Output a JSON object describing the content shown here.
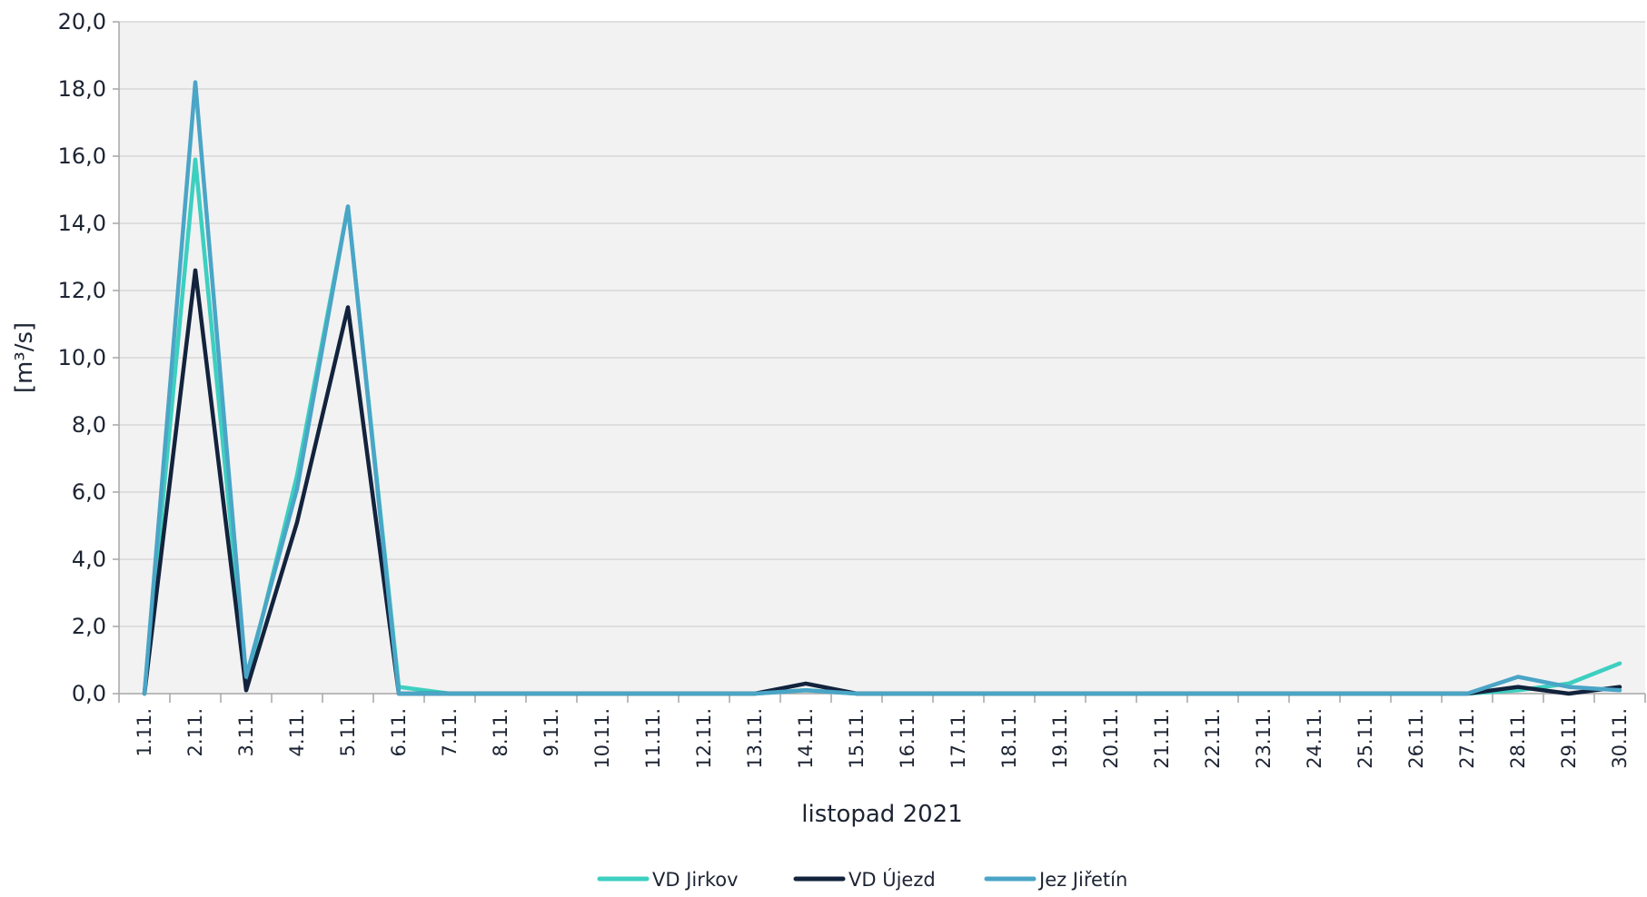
{
  "chart_data": {
    "type": "line",
    "title": "",
    "xlabel": "listopad 2021",
    "ylabel": "[m³/s]",
    "categories": [
      "1.11.",
      "2.11.",
      "3.11.",
      "4.11.",
      "5.11.",
      "6.11.",
      "7.11.",
      "8.11.",
      "9.11.",
      "10.11.",
      "11.11.",
      "12.11.",
      "13.11.",
      "14.11.",
      "15.11.",
      "16.11.",
      "17.11.",
      "18.11.",
      "19.11.",
      "20.11.",
      "21.11.",
      "22.11.",
      "23.11.",
      "24.11.",
      "25.11.",
      "26.11.",
      "27.11.",
      "28.11.",
      "29.11.",
      "30.11."
    ],
    "ylim": [
      0,
      20
    ],
    "y_ticks": [
      "0,0",
      "2,0",
      "4,0",
      "6,0",
      "8,0",
      "10,0",
      "12,0",
      "14,0",
      "16,0",
      "18,0",
      "20,0"
    ],
    "y_tick_values": [
      0,
      2,
      4,
      6,
      8,
      10,
      12,
      14,
      16,
      18,
      20
    ],
    "grid": true,
    "legend_position": "bottom",
    "colors": {
      "plot_background": "#f2f2f2",
      "gridline": "#d7d7d7",
      "axis": "#a6a6a6"
    },
    "series": [
      {
        "name": "VD Jirkov",
        "color": "#3dcfc0",
        "values": [
          0,
          15.9,
          0.3,
          6.5,
          14.5,
          0.2,
          0,
          0,
          0,
          0,
          0,
          0,
          0,
          0.1,
          0,
          0,
          0,
          0,
          0,
          0,
          0,
          0,
          0,
          0,
          0,
          0,
          0,
          0.1,
          0.3,
          0.9
        ]
      },
      {
        "name": "VD Újezd",
        "color": "#13233d",
        "values": [
          0,
          12.6,
          0.1,
          5.1,
          11.5,
          0,
          0,
          0,
          0,
          0,
          0,
          0,
          0,
          0.3,
          0,
          0,
          0,
          0,
          0,
          0,
          0,
          0,
          0,
          0,
          0,
          0,
          0,
          0.2,
          0,
          0.2
        ]
      },
      {
        "name": "Jez Jiřetín",
        "color": "#4aa5c6",
        "values": [
          0,
          18.2,
          0.5,
          6.1,
          14.5,
          0,
          0,
          0,
          0,
          0,
          0,
          0,
          0,
          0.1,
          0,
          0,
          0,
          0,
          0,
          0,
          0,
          0,
          0,
          0,
          0,
          0,
          0,
          0.5,
          0.2,
          0.1
        ]
      }
    ]
  }
}
